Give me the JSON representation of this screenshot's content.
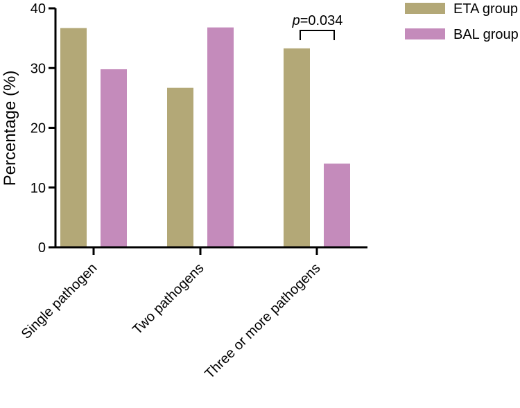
{
  "chart_data": {
    "type": "bar",
    "categories": [
      "Single pathogen",
      "Two pathogens",
      "Three or more pathogens"
    ],
    "series": [
      {
        "name": "ETA group",
        "values": [
          36.7,
          26.7,
          33.3
        ],
        "color": "#b3a877"
      },
      {
        "name": "BAL group",
        "values": [
          29.8,
          36.8,
          14.0
        ],
        "color": "#c48bbb"
      }
    ],
    "ylabel": "Percentage (%)",
    "ylim": [
      0,
      40
    ],
    "yticks": [
      "0",
      "10",
      "20",
      "30",
      "40"
    ],
    "grid": false,
    "legend_position": "top-right",
    "annotation": {
      "p_symbol": "p",
      "p_value": "=0.034",
      "category": "Three or more pathogens"
    }
  }
}
